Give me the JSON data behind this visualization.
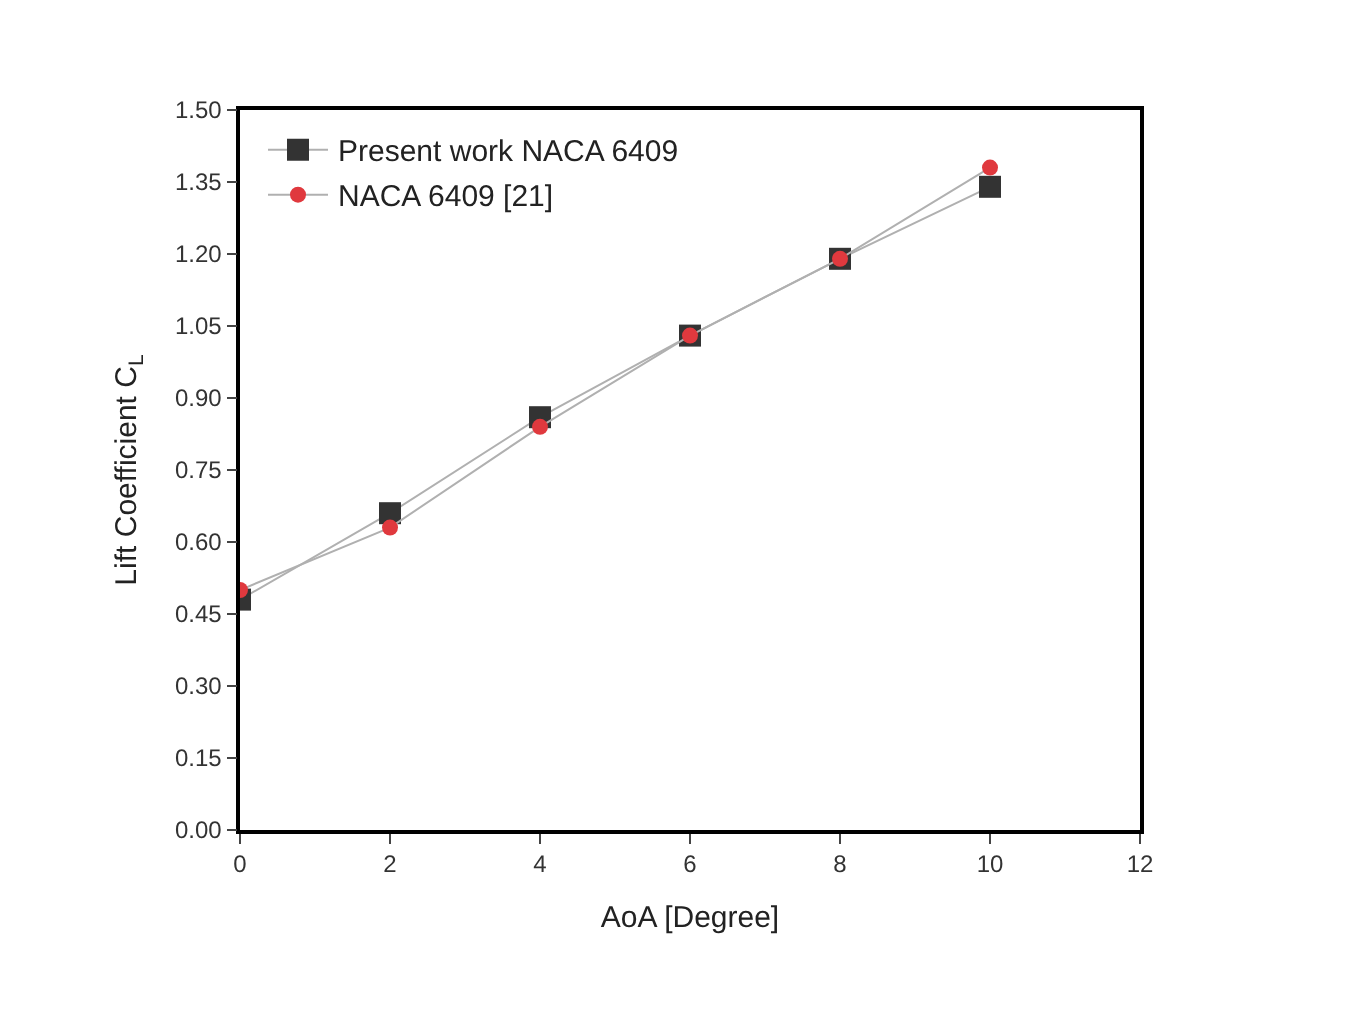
{
  "chart_data": {
    "type": "line",
    "xlabel": "AoA [Degree]",
    "ylabel": "Lift Coefficient C$_{L}$",
    "x": [
      0,
      2,
      4,
      6,
      8,
      10
    ],
    "series": [
      {
        "name": "Present work NACA 6409",
        "color": "#333333",
        "marker": "square",
        "values": [
          0.48,
          0.66,
          0.86,
          1.03,
          1.19,
          1.34
        ]
      },
      {
        "name": "NACA 6409 [21]",
        "color": "#e0393e",
        "marker": "circle",
        "values": [
          0.5,
          0.63,
          0.84,
          1.03,
          1.19,
          1.38
        ]
      }
    ],
    "xlim": [
      0,
      12
    ],
    "xticks": [
      0,
      2,
      4,
      6,
      8,
      10,
      12
    ],
    "ylim": [
      0,
      1.5
    ],
    "yticks": [
      {
        "value": 0,
        "label": "0.00"
      },
      {
        "value": 0.15,
        "label": "0.15"
      },
      {
        "value": 0.3,
        "label": "0.30"
      },
      {
        "value": 0.45,
        "label": "0.45"
      },
      {
        "value": 0.6,
        "label": "0.60"
      },
      {
        "value": 0.75,
        "label": "0.75"
      },
      {
        "value": 0.9,
        "label": "0.90"
      },
      {
        "value": 1.05,
        "label": "1.05"
      },
      {
        "value": 1.2,
        "label": "1.20"
      },
      {
        "value": 1.35,
        "label": "1.35"
      },
      {
        "value": 1.5,
        "label": "1.50"
      }
    ],
    "legend": "top left",
    "grid": false
  }
}
